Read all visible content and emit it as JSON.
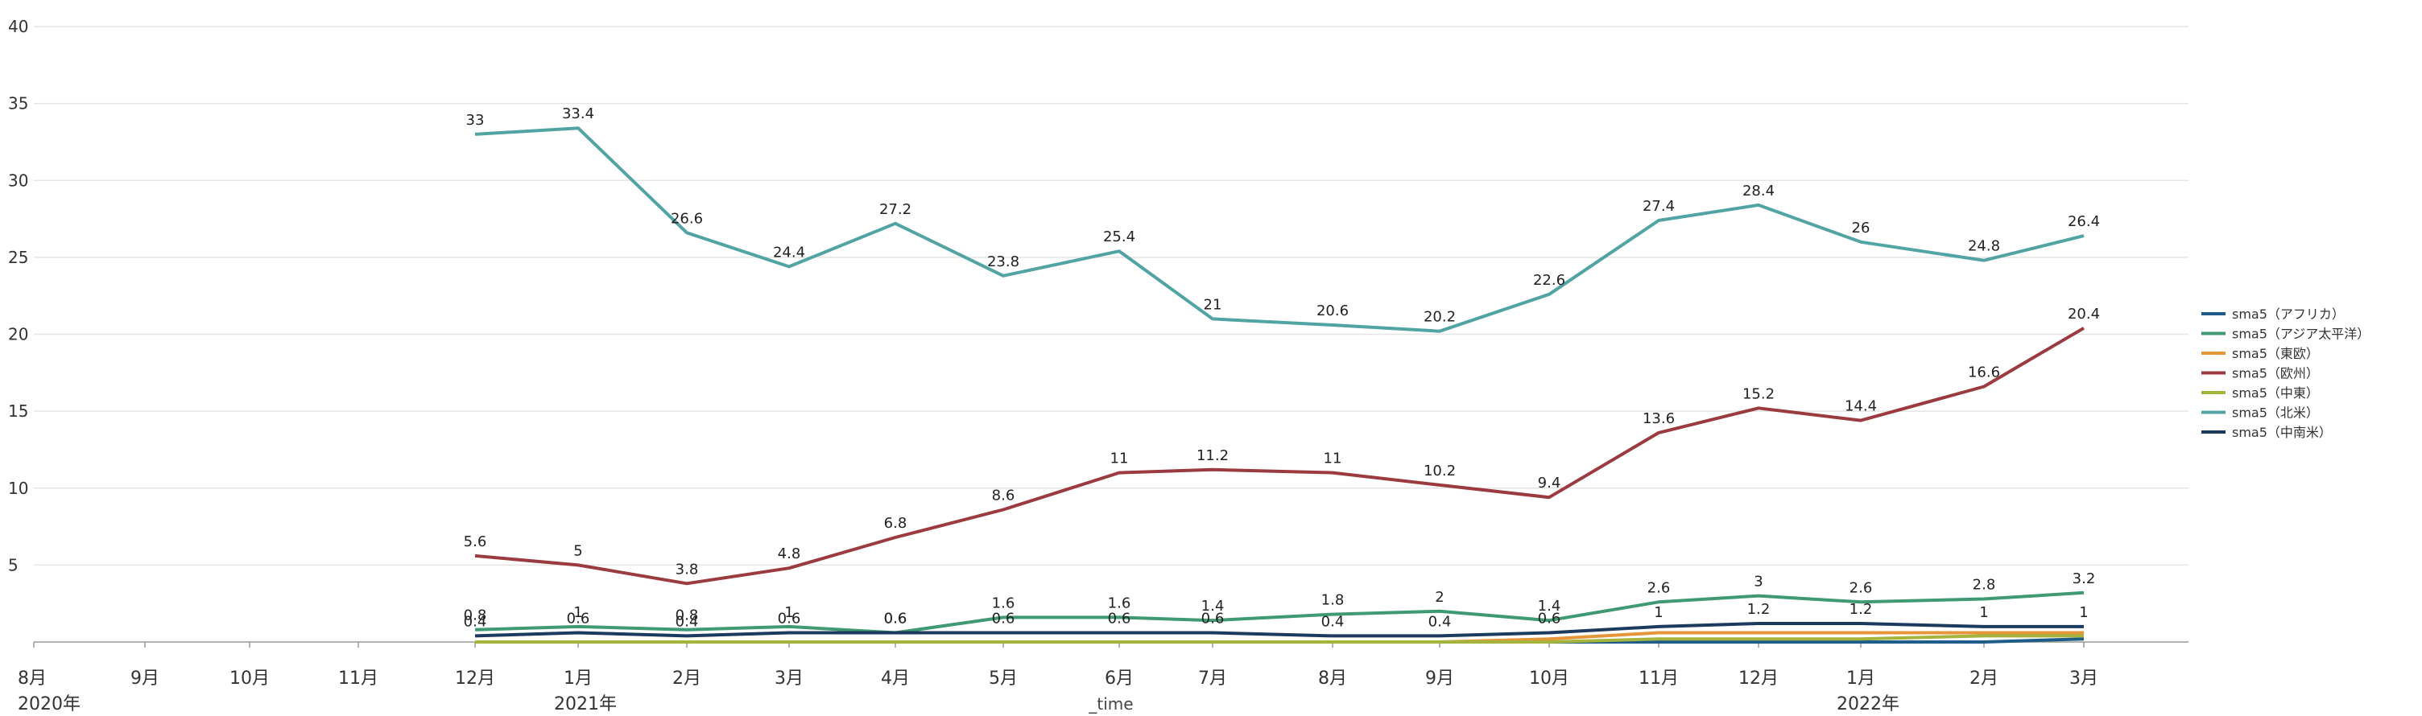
{
  "chart_data": {
    "type": "line",
    "title": "",
    "xlabel": "_time",
    "ylabel": "",
    "ylim": [
      0,
      40
    ],
    "yticks": [
      5,
      10,
      15,
      20,
      25,
      30,
      35,
      40
    ],
    "grid": true,
    "legend_position": "right",
    "axis_months": [
      {
        "label": "8月",
        "year": "2020年"
      },
      {
        "label": "9月",
        "year": ""
      },
      {
        "label": "10月",
        "year": ""
      },
      {
        "label": "11月",
        "year": ""
      },
      {
        "label": "12月",
        "year": ""
      },
      {
        "label": "1月",
        "year": "2021年"
      },
      {
        "label": "2月",
        "year": ""
      },
      {
        "label": "3月",
        "year": ""
      },
      {
        "label": "4月",
        "year": ""
      },
      {
        "label": "5月",
        "year": ""
      },
      {
        "label": "6月",
        "year": ""
      },
      {
        "label": "7月",
        "year": ""
      },
      {
        "label": "8月",
        "year": ""
      },
      {
        "label": "9月",
        "year": ""
      },
      {
        "label": "10月",
        "year": ""
      },
      {
        "label": "11月",
        "year": ""
      },
      {
        "label": "12月",
        "year": ""
      },
      {
        "label": "1月",
        "year": "2022年"
      },
      {
        "label": "2月",
        "year": ""
      },
      {
        "label": "3月",
        "year": ""
      }
    ],
    "x_start_index": 4,
    "categories": [
      "2020-12",
      "2021-01",
      "2021-02",
      "2021-03",
      "2021-04",
      "2021-05",
      "2021-06",
      "2021-07",
      "2021-08",
      "2021-09",
      "2021-10",
      "2021-11",
      "2021-12",
      "2022-01",
      "2022-02",
      "2022-03"
    ],
    "series": [
      {
        "name": "sma5（アフリカ）",
        "color": "#1f5c8a",
        "values": [
          0,
          0,
          0,
          0,
          0,
          0,
          0,
          0,
          0,
          0,
          0,
          0,
          0,
          0,
          0,
          0.2
        ],
        "labeled": false
      },
      {
        "name": "sma5（アジア太平洋）",
        "color": "#3f9a72",
        "values": [
          0.8,
          1,
          0.8,
          1,
          0.6,
          1.6,
          1.6,
          1.4,
          1.8,
          2,
          1.4,
          2.6,
          3,
          2.6,
          2.8,
          3.2
        ],
        "labeled": true
      },
      {
        "name": "sma5（東欧）",
        "color": "#e6963a",
        "values": [
          0,
          0,
          0,
          0,
          0,
          0,
          0,
          0,
          0,
          0,
          0.2,
          0.6,
          0.6,
          0.6,
          0.6,
          0.6
        ],
        "labeled": false
      },
      {
        "name": "sma5（欧州）",
        "color": "#9b3a3f",
        "values": [
          5.6,
          5,
          3.8,
          4.8,
          6.8,
          8.6,
          11,
          11.2,
          11,
          10.2,
          9.4,
          13.6,
          15.2,
          14.4,
          16.6,
          20.4
        ],
        "labeled": true
      },
      {
        "name": "sma5（中東）",
        "color": "#a5b43c",
        "values": [
          0,
          0,
          0,
          0,
          0,
          0,
          0,
          0,
          0,
          0,
          0,
          0.2,
          0.2,
          0.2,
          0.4,
          0.4
        ],
        "labeled": false
      },
      {
        "name": "sma5（北米）",
        "color": "#52a3a3",
        "values": [
          33,
          33.4,
          26.6,
          24.4,
          27.2,
          23.8,
          25.4,
          21,
          20.6,
          20.2,
          22.6,
          27.4,
          28.4,
          26,
          24.8,
          26.4
        ],
        "labeled": true
      },
      {
        "name": "sma5（中南米）",
        "color": "#1c3a5e",
        "values": [
          0.4,
          0.6,
          0.4,
          0.6,
          0.6,
          0.6,
          0.6,
          0.6,
          0.4,
          0.4,
          0.6,
          1,
          1.2,
          1.2,
          1,
          1
        ],
        "labeled": true
      }
    ]
  }
}
